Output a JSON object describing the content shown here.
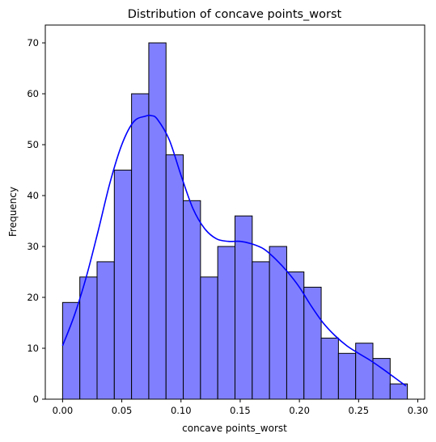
{
  "chart_data": {
    "type": "histogram",
    "title": "Distribution of concave points_worst",
    "xlabel": "concave points_worst",
    "ylabel": "Frequency",
    "xlim": [
      -0.0146,
      0.3058
    ],
    "ylim": [
      0,
      73.5
    ],
    "x_ticks": [
      0.0,
      0.05,
      0.1,
      0.15,
      0.2,
      0.25,
      0.3
    ],
    "x_tick_labels": [
      "0.00",
      "0.05",
      "0.10",
      "0.15",
      "0.20",
      "0.25",
      "0.30"
    ],
    "y_ticks": [
      0,
      10,
      20,
      30,
      40,
      50,
      60,
      70
    ],
    "y_tick_labels": [
      "0",
      "10",
      "20",
      "30",
      "40",
      "50",
      "60",
      "70"
    ],
    "bin_start": 0.0,
    "bin_width": 0.01456,
    "counts": [
      19,
      24,
      27,
      45,
      60,
      70,
      48,
      39,
      24,
      30,
      36,
      27,
      30,
      25,
      22,
      12,
      9,
      11,
      8,
      3
    ],
    "bar_fill": "#8080ff",
    "bar_edge": "#000000",
    "kde_color": "#0000ff",
    "kde": {
      "x": [
        0.0,
        0.01,
        0.02,
        0.03,
        0.04,
        0.05,
        0.06,
        0.07,
        0.075,
        0.08,
        0.09,
        0.1,
        0.11,
        0.12,
        0.13,
        0.14,
        0.15,
        0.16,
        0.17,
        0.18,
        0.19,
        0.2,
        0.21,
        0.22,
        0.23,
        0.24,
        0.25,
        0.26,
        0.27,
        0.28,
        0.29
      ],
      "y": [
        10.5,
        16.5,
        24,
        33,
        42.5,
        50,
        54.5,
        55.6,
        55.7,
        55,
        51,
        44,
        37.5,
        33.5,
        31.5,
        31,
        31,
        30.5,
        29.5,
        27.5,
        25,
        22,
        18.3,
        15,
        12.5,
        10.5,
        9,
        7.6,
        6,
        4.3,
        2.6
      ]
    }
  }
}
